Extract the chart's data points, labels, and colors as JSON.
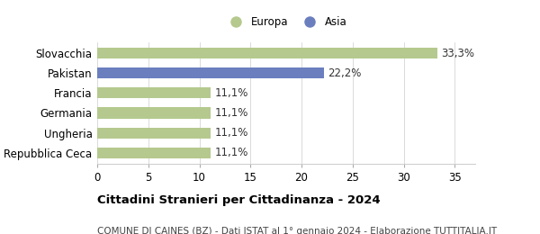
{
  "categories": [
    "Slovacchia",
    "Pakistan",
    "Francia",
    "Germania",
    "Ungheria",
    "Repubblica Ceca"
  ],
  "values": [
    33.3,
    22.2,
    11.1,
    11.1,
    11.1,
    11.1
  ],
  "bar_colors": [
    "#b5c98e",
    "#6b7fbf",
    "#b5c98e",
    "#b5c98e",
    "#b5c98e",
    "#b5c98e"
  ],
  "labels": [
    "33,3%",
    "22,2%",
    "11,1%",
    "11,1%",
    "11,1%",
    "11,1%"
  ],
  "legend": [
    {
      "label": "Europa",
      "color": "#b5c98e"
    },
    {
      "label": "Asia",
      "color": "#6b7fbf"
    }
  ],
  "xlim": [
    0,
    37
  ],
  "xticks": [
    0,
    5,
    10,
    15,
    20,
    25,
    30,
    35
  ],
  "title_bold": "Cittadini Stranieri per Cittadinanza - 2024",
  "subtitle": "COMUNE DI CAINES (BZ) - Dati ISTAT al 1° gennaio 2024 - Elaborazione TUTTITALIA.IT",
  "background_color": "#ffffff",
  "bar_height": 0.55,
  "label_fontsize": 8.5,
  "title_fontsize": 9.5,
  "subtitle_fontsize": 7.5
}
